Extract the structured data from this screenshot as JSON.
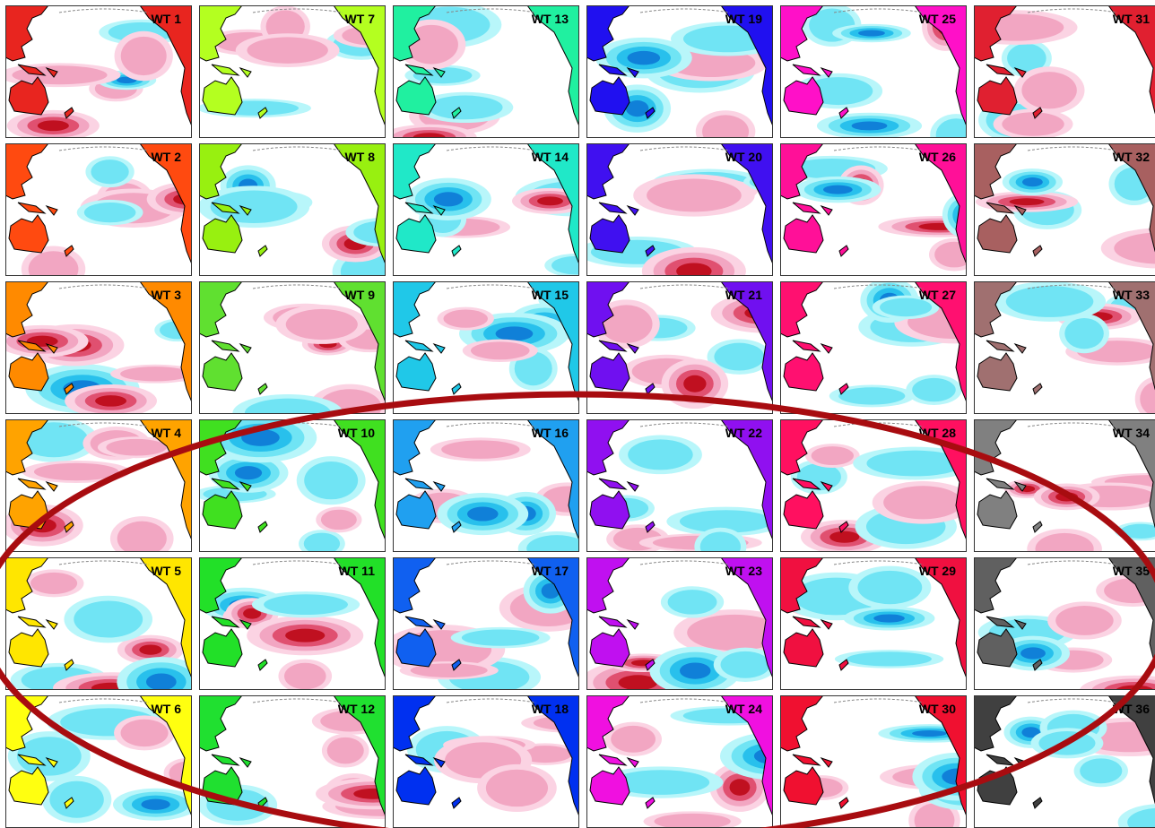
{
  "panels": [
    {
      "label": "WT 1",
      "color": "#e8251f"
    },
    {
      "label": "WT 2",
      "color": "#ff4a10"
    },
    {
      "label": "WT 3",
      "color": "#ff8a00"
    },
    {
      "label": "WT 4",
      "color": "#ffa300"
    },
    {
      "label": "WT 5",
      "color": "#ffe600"
    },
    {
      "label": "WT 6",
      "color": "#ffff10"
    },
    {
      "label": "WT 7",
      "color": "#b4ff20"
    },
    {
      "label": "WT 8",
      "color": "#98f010"
    },
    {
      "label": "WT 9",
      "color": "#60e030"
    },
    {
      "label": "WT 10",
      "color": "#40e020"
    },
    {
      "label": "WT 11",
      "color": "#22e028"
    },
    {
      "label": "WT 12",
      "color": "#20e030"
    },
    {
      "label": "WT 13",
      "color": "#20f0a0"
    },
    {
      "label": "WT 14",
      "color": "#20e8c8"
    },
    {
      "label": "WT 15",
      "color": "#20c8e8"
    },
    {
      "label": "WT 16",
      "color": "#20a0f0"
    },
    {
      "label": "WT 17",
      "color": "#1060f0"
    },
    {
      "label": "WT 18",
      "color": "#0030f0"
    },
    {
      "label": "WT 19",
      "color": "#2010f0"
    },
    {
      "label": "WT 20",
      "color": "#4010f0"
    },
    {
      "label": "WT 21",
      "color": "#7010f0"
    },
    {
      "label": "WT 22",
      "color": "#9010f0"
    },
    {
      "label": "WT 23",
      "color": "#c010f0"
    },
    {
      "label": "WT 24",
      "color": "#f010e0"
    },
    {
      "label": "WT 25",
      "color": "#ff10c8"
    },
    {
      "label": "WT 26",
      "color": "#ff1098"
    },
    {
      "label": "WT 27",
      "color": "#ff1070"
    },
    {
      "label": "WT 28",
      "color": "#ff1060"
    },
    {
      "label": "WT 29",
      "color": "#f01040"
    },
    {
      "label": "WT 30",
      "color": "#f01030"
    },
    {
      "label": "WT 31",
      "color": "#e02030"
    },
    {
      "label": "WT 32",
      "color": "#a86060"
    },
    {
      "label": "WT 33",
      "color": "#a07070"
    },
    {
      "label": "WT 34",
      "color": "#808080"
    },
    {
      "label": "WT 35",
      "color": "#606060"
    },
    {
      "label": "WT 36",
      "color": "#404040"
    }
  ]
}
